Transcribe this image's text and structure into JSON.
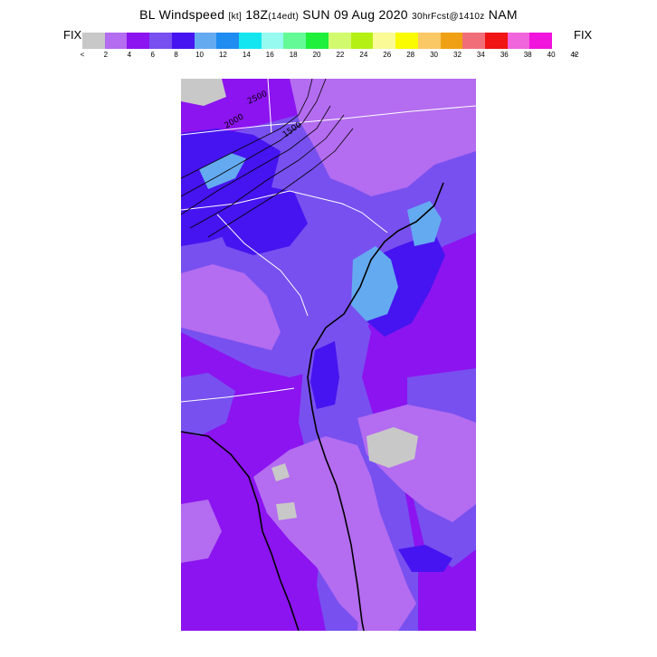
{
  "header": {
    "title_main": "BL Windspeed",
    "title_units": "[kt]",
    "title_time": "18Z",
    "title_local": "(14edt)",
    "title_date": "SUN 09 Aug 2020",
    "title_forecast": "30hrFcst@1410z",
    "title_model": "NAM"
  },
  "legend": {
    "left_label": "FIX",
    "right_label": "FIX",
    "colors": [
      "#c8c8c8",
      "#b46cf0",
      "#8c14f0",
      "#7850f0",
      "#4614f0",
      "#64aaf0",
      "#1e8cf0",
      "#14e6f0",
      "#96faf0",
      "#64fa96",
      "#1ef03c",
      "#d2fa6e",
      "#b4f014",
      "#fafa96",
      "#fafa00",
      "#fac864",
      "#f0a014",
      "#f06e78",
      "#f01414",
      "#f064dc",
      "#f014dc"
    ],
    "tick_left": "<",
    "tick_right": ">",
    "ticks": [
      "2",
      "4",
      "6",
      "8",
      "10",
      "12",
      "14",
      "16",
      "18",
      "20",
      "22",
      "24",
      "26",
      "28",
      "30",
      "32",
      "34",
      "36",
      "38",
      "40",
      "42"
    ]
  },
  "map": {
    "contour_labels": [
      "2500",
      "2000",
      "1500"
    ],
    "colors": {
      "lilac": "#b46cf0",
      "purple": "#8c14f0",
      "blue_violet": "#7850f0",
      "blue": "#4614f0",
      "light_blue": "#64aaf0",
      "gray": "#c8c8c8"
    }
  }
}
